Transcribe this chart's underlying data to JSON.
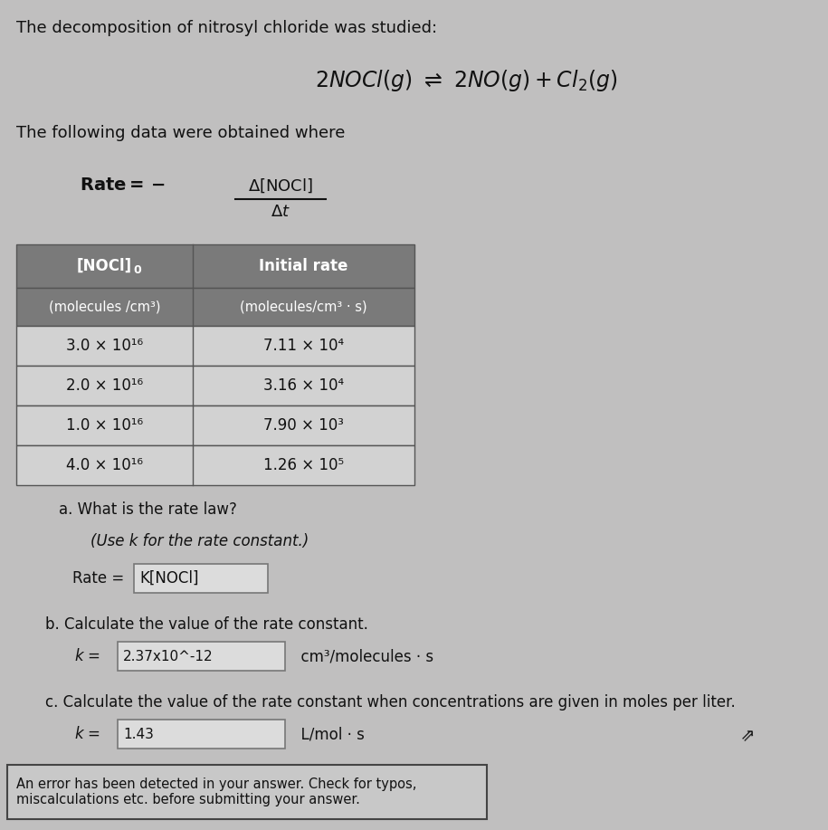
{
  "background_color": "#c0bfbf",
  "title_text": "The decomposition of nitrosyl chloride was studied:",
  "following_data_text": "The following data were obtained where",
  "table_header_col1": "[NOCl]",
  "table_header_col1_sub": "0",
  "table_header_col2": "Initial rate",
  "table_subheader_col1": "(molecules /cm³)",
  "table_subheader_col2": "(molecules/cm³ · s)",
  "table_data": [
    [
      "3.0 × 10¹⁶",
      "7.11 × 10⁴"
    ],
    [
      "2.0 × 10¹⁶",
      "3.16 × 10⁴"
    ],
    [
      "1.0 × 10¹⁶",
      "7.90 × 10³"
    ],
    [
      "4.0 × 10¹⁶",
      "1.26 × 10⁵"
    ]
  ],
  "part_a_label": "a. What is the rate law?",
  "part_a_italic": "(Use k for the rate constant.)",
  "rate_box_content": "K[NOCl]",
  "part_b_label": "b. Calculate the value of the rate constant.",
  "k_b_box": "2.37x10^-12",
  "k_b_suffix": "cm³/molecules · s",
  "part_c_label": "c. Calculate the value of the rate constant when concentrations are given in moles per liter.",
  "k_c_box": "1.43",
  "k_c_suffix": "L/mol · s",
  "error_box_text": "An error has been detected in your answer. Check for typos,\nmiscalculations etc. before submitting your answer.",
  "table_header_bg": "#7a7a7a",
  "table_row_bg": "#d2d2d2",
  "table_border_color": "#555555",
  "input_box_bg": "#dcdcdc",
  "input_box_border": "#777777",
  "error_box_bg": "#c8c8c8",
  "error_box_border": "#444444",
  "text_color": "#111111"
}
